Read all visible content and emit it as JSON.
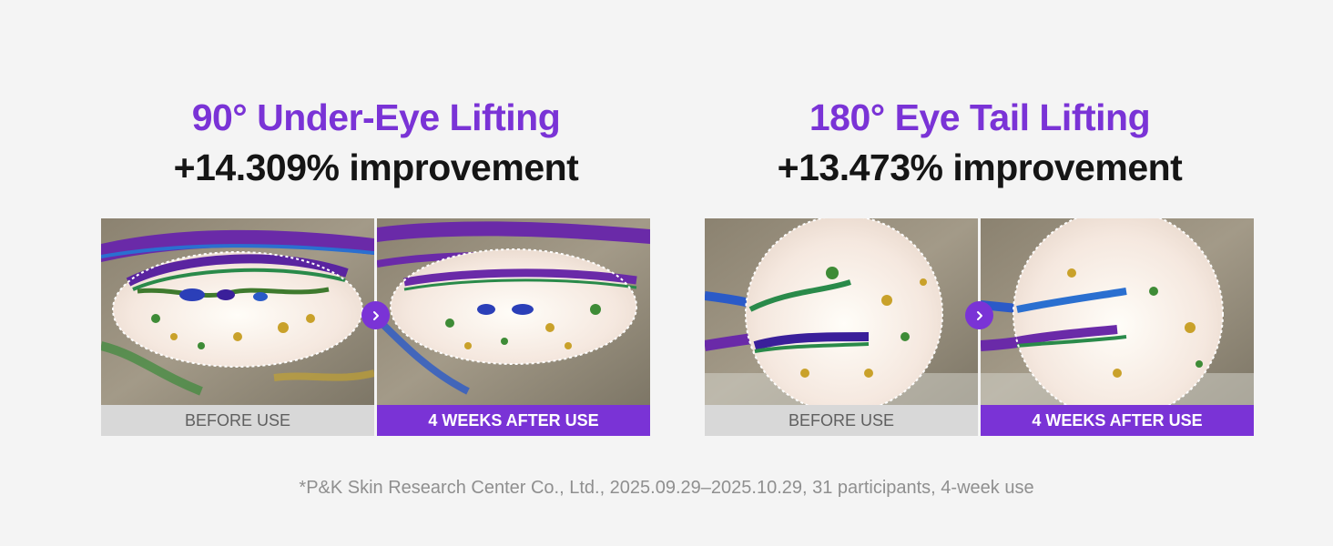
{
  "accent_color": "#7a33d6",
  "panels": [
    {
      "title": "90° Under-Eye Lifting",
      "improvement": "+14.309% improvement",
      "before_label": "BEFORE USE",
      "after_label": "4 WEEKS AFTER USE",
      "arrow_icon": "chevron-right-icon"
    },
    {
      "title": "180° Eye Tail Lifting",
      "improvement": "+13.473% improvement",
      "before_label": "BEFORE USE",
      "after_label": "4 WEEKS AFTER USE",
      "arrow_icon": "chevron-right-icon"
    }
  ],
  "footnote": "*P&K Skin Research Center Co., Ltd., 2025.09.29–2025.10.29, 31 participants, 4-week use"
}
